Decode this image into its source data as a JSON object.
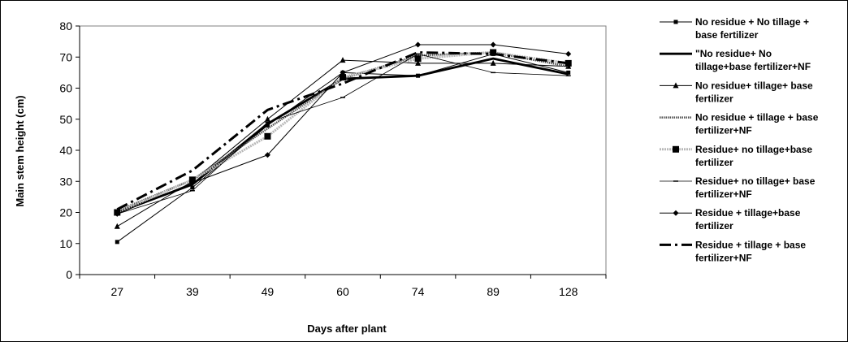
{
  "chart_data": {
    "type": "line",
    "xlabel": "Days after plant",
    "ylabel": "Main stem height (cm)",
    "categories": [
      "27",
      "39",
      "49",
      "60",
      "74",
      "89",
      "128"
    ],
    "ylim": [
      0,
      80
    ],
    "yticks": [
      "0",
      "10",
      "20",
      "30",
      "40",
      "50",
      "60",
      "70",
      "80"
    ],
    "grid": false,
    "legend_position": "right",
    "series": [
      {
        "name": "No residue + No tillage + base fertilizer",
        "values": [
          10.5,
          28,
          48,
          65,
          64,
          71,
          65
        ],
        "color": "#000000",
        "marker": "square-small",
        "style": "thin"
      },
      {
        "name": "\"No residue+ No tillage+base fertilizer+NF",
        "values": [
          20,
          29,
          48.5,
          63,
          64,
          69.5,
          64.5
        ],
        "color": "#000000",
        "marker": "none",
        "style": "thick"
      },
      {
        "name": "No residue+ tillage+ base fertilizer",
        "values": [
          15.5,
          30,
          50,
          69,
          68,
          68,
          67
        ],
        "color": "#000000",
        "marker": "triangle",
        "style": "thin"
      },
      {
        "name": "No residue + tillage + base fertilizer+NF",
        "values": [
          20.5,
          30.5,
          47,
          63,
          70.5,
          71.5,
          67
        ],
        "color": "#666666",
        "marker": "none",
        "style": "gray"
      },
      {
        "name": "Residue+ no tillage+base fertilizer",
        "values": [
          20,
          30.5,
          44.5,
          63.5,
          69.5,
          71.5,
          68
        ],
        "color": "#bbbbbb",
        "marker": "square-big",
        "style": "lightgray"
      },
      {
        "name": "Residue+ no tillage+ base fertilizer+NF",
        "values": [
          19.5,
          27,
          49,
          57,
          71,
          65,
          64
        ],
        "color": "#000000",
        "marker": "dash",
        "style": "hair"
      },
      {
        "name": "Residue + tillage+base fertilizer",
        "values": [
          19.5,
          29.5,
          38.5,
          65,
          74,
          74,
          71
        ],
        "color": "#000000",
        "marker": "diamond",
        "style": "thin"
      },
      {
        "name": "Residue + tillage + base fertilizer+NF",
        "values": [
          21,
          33.5,
          53,
          61.5,
          71.5,
          71,
          68
        ],
        "color": "#000000",
        "marker": "none",
        "style": "dashdot"
      }
    ],
    "legend_labels": [
      [
        "No residue + No tillage +",
        "base fertilizer"
      ],
      [
        "\"No residue+ No",
        "tillage+base fertilizer+NF"
      ],
      [
        "No residue+ tillage+ base",
        "fertilizer"
      ],
      [
        "No residue + tillage + base",
        "fertilizer+NF"
      ],
      [
        "Residue+ no tillage+base",
        "fertilizer"
      ],
      [
        "Residue+ no tillage+ base",
        "fertilizer+NF"
      ],
      [
        "Residue + tillage+base",
        "fertilizer"
      ],
      [
        "Residue + tillage + base",
        "fertilizer+NF"
      ]
    ]
  }
}
